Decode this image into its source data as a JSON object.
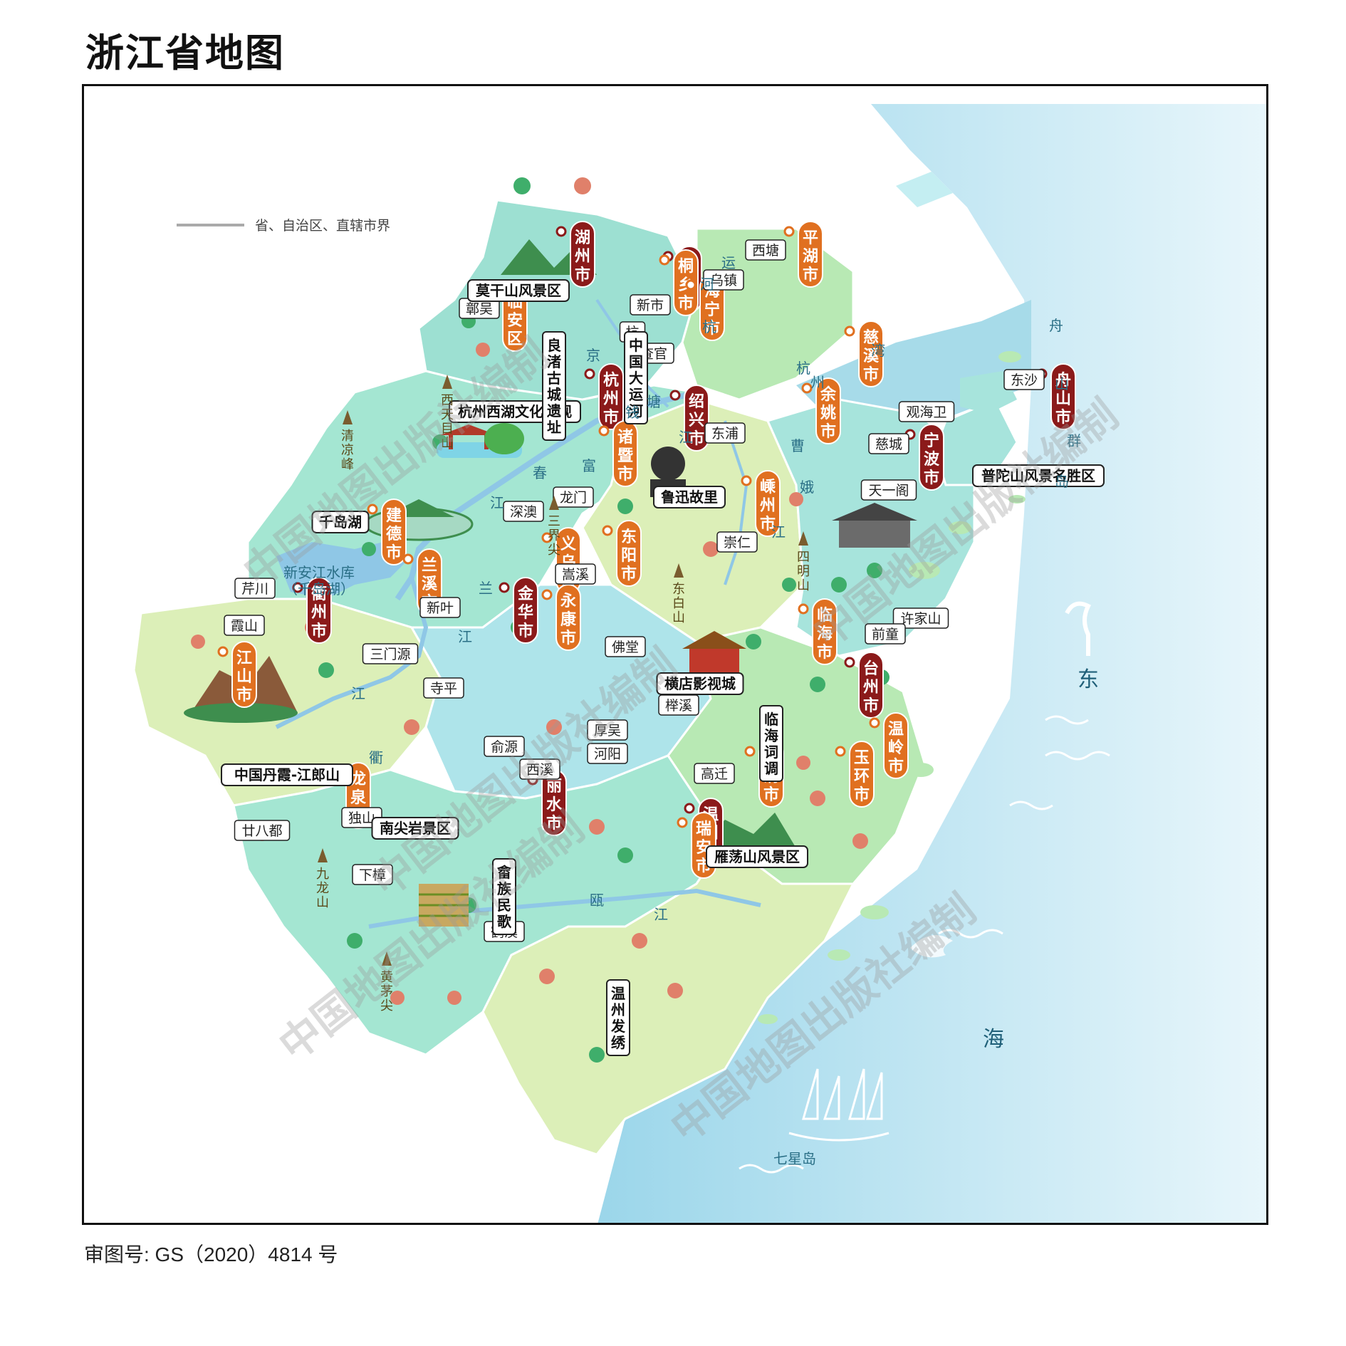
{
  "title": "浙江省地图",
  "approval_number": "审图号: GS（2020）4814 号",
  "legend": {
    "boundary_label": "省、自治区、直辖市界"
  },
  "colors": {
    "sea": "#a9dcec",
    "sea_light": "#e6f5fa",
    "aqua_region": "#9de0d2",
    "green_region": "#b8e9b4",
    "pale_region": "#dcefb8",
    "blue_region": "#aee4ea",
    "prefecture_pill": "#8b1a1a",
    "county_pill": "#e07020",
    "river": "#8fc7e6"
  },
  "prefecture_cities": [
    {
      "name": "湖州市",
      "chars": [
        "湖",
        "州",
        "市"
      ]
    },
    {
      "name": "嘉兴市",
      "chars": [
        "嘉",
        "兴",
        "市"
      ]
    },
    {
      "name": "杭州市",
      "chars": [
        "杭",
        "州",
        "市"
      ]
    },
    {
      "name": "绍兴市",
      "chars": [
        "绍",
        "兴",
        "市"
      ]
    },
    {
      "name": "舟山市",
      "chars": [
        "舟",
        "山",
        "市"
      ]
    },
    {
      "name": "宁波市",
      "chars": [
        "宁",
        "波",
        "市"
      ]
    },
    {
      "name": "衢州市",
      "chars": [
        "衢",
        "州",
        "市"
      ]
    },
    {
      "name": "金华市",
      "chars": [
        "金",
        "华",
        "市"
      ]
    },
    {
      "name": "台州市",
      "chars": [
        "台",
        "州",
        "市"
      ]
    },
    {
      "name": "丽水市",
      "chars": [
        "丽",
        "水",
        "市"
      ]
    },
    {
      "name": "温州市",
      "chars": [
        "温",
        "州",
        "市"
      ]
    }
  ],
  "county_cities": [
    {
      "name": "平湖市",
      "chars": [
        "平",
        "湖",
        "市"
      ]
    },
    {
      "name": "桐乡市",
      "chars": [
        "桐",
        "乡",
        "市"
      ]
    },
    {
      "name": "海宁市",
      "chars": [
        "海",
        "宁",
        "市"
      ]
    },
    {
      "name": "临安区",
      "chars": [
        "临",
        "安",
        "区"
      ]
    },
    {
      "name": "慈溪市",
      "chars": [
        "慈",
        "溪",
        "市"
      ]
    },
    {
      "name": "余姚市",
      "chars": [
        "余",
        "姚",
        "市"
      ]
    },
    {
      "name": "诸暨市",
      "chars": [
        "诸",
        "暨",
        "市"
      ]
    },
    {
      "name": "嵊州市",
      "chars": [
        "嵊",
        "州",
        "市"
      ]
    },
    {
      "name": "建德市",
      "chars": [
        "建",
        "德",
        "市"
      ]
    },
    {
      "name": "兰溪市",
      "chars": [
        "兰",
        "溪",
        "市"
      ]
    },
    {
      "name": "义乌市",
      "chars": [
        "义",
        "乌",
        "市"
      ]
    },
    {
      "name": "东阳市",
      "chars": [
        "东",
        "阳",
        "市"
      ]
    },
    {
      "name": "永康市",
      "chars": [
        "永",
        "康",
        "市"
      ]
    },
    {
      "name": "江山市",
      "chars": [
        "江",
        "山",
        "市"
      ]
    },
    {
      "name": "临海市",
      "chars": [
        "临",
        "海",
        "市"
      ]
    },
    {
      "name": "温岭市",
      "chars": [
        "温",
        "岭",
        "市"
      ]
    },
    {
      "name": "玉环市",
      "chars": [
        "玉",
        "环",
        "市"
      ]
    },
    {
      "name": "乐清市",
      "chars": [
        "乐",
        "清",
        "市"
      ]
    },
    {
      "name": "瑞安市",
      "chars": [
        "瑞",
        "安",
        "市"
      ]
    },
    {
      "name": "龙泉市",
      "chars": [
        "龙",
        "泉",
        "市"
      ]
    }
  ],
  "towns": [
    "西塘",
    "乌镇",
    "鄣吴",
    "新市",
    "杭",
    "查官",
    "东沙",
    "东浦",
    "观海卫",
    "慈城",
    "天一阁",
    "龙门",
    "深澳",
    "崇仁",
    "芹川",
    "霞山",
    "新叶",
    "嵩溪",
    "佛堂",
    "三门源",
    "寺平",
    "榉溪",
    "许家山",
    "前童",
    "厚吴",
    "俞源",
    "西溪",
    "河阳",
    "高迁",
    "廿八都",
    "独山",
    "下樟",
    "鹤溪"
  ],
  "attractions": [
    "莫干山风景区",
    "杭州西湖文化景观",
    "鲁迅故里",
    "普陀山风景名胜区",
    "千岛湖",
    "横店影视城",
    "中国丹霞-江郎山",
    "南尖岩景区",
    "雁荡山风景区"
  ],
  "vertical_features": [
    {
      "name": "良渚古城遗址",
      "chars": [
        "良",
        "渚",
        "古",
        "城",
        "遗",
        "址"
      ]
    },
    {
      "name": "中国大运河",
      "chars": [
        "中",
        "国",
        "大",
        "运",
        "河"
      ]
    },
    {
      "name": "临海词调",
      "chars": [
        "临",
        "海",
        "词",
        "调"
      ]
    },
    {
      "name": "畲族民歌",
      "chars": [
        "畲",
        "族",
        "民",
        "歌"
      ]
    },
    {
      "name": "温州发绣",
      "chars": [
        "温",
        "州",
        "发",
        "绣"
      ]
    }
  ],
  "mountains": [
    {
      "name": "西天目山",
      "chars": [
        "西",
        "天",
        "目",
        "山"
      ]
    },
    {
      "name": "清凉峰",
      "chars": [
        "清",
        "凉",
        "峰"
      ]
    },
    {
      "name": "三界尖",
      "chars": [
        "三",
        "界",
        "尖"
      ]
    },
    {
      "name": "东白山",
      "chars": [
        "东",
        "白",
        "山"
      ]
    },
    {
      "name": "四明山",
      "chars": [
        "四",
        "明",
        "山"
      ]
    },
    {
      "name": "九龙山",
      "chars": [
        "九",
        "龙",
        "山"
      ]
    },
    {
      "name": "黄茅尖",
      "chars": [
        "黄",
        "茅",
        "尖"
      ]
    }
  ],
  "water_labels": {
    "reservoir": "新安江水库",
    "reservoir_alt": "（千岛湖）",
    "river_chars": [
      "运",
      "河",
      "京",
      "杭",
      "钱",
      "塘",
      "江",
      "富",
      "春",
      "江",
      "兰",
      "江",
      "衢",
      "江",
      "曹",
      "娥",
      "江",
      "瓯",
      "江"
    ],
    "bay_chars": [
      "杭",
      "州",
      "湾"
    ],
    "archipelago_chars": [
      "舟",
      "山",
      "群",
      "岛"
    ],
    "sea_chars": [
      "东",
      "海"
    ],
    "island": "七星岛"
  },
  "watermark": "中国地图出版社编制"
}
